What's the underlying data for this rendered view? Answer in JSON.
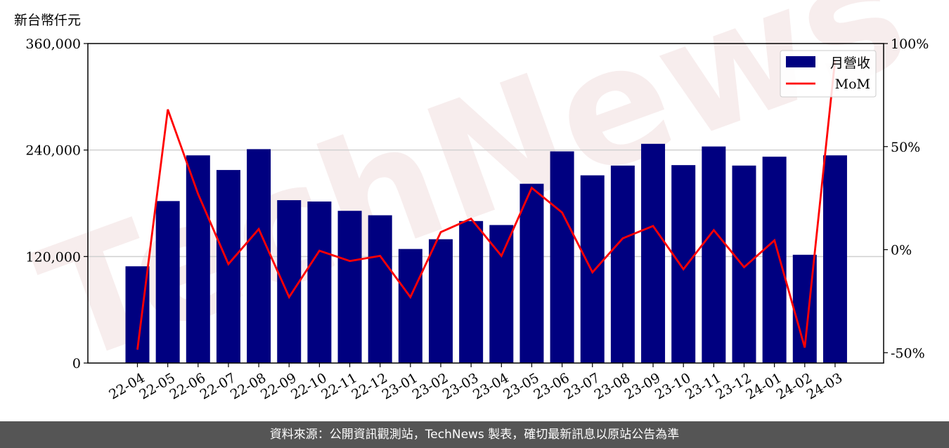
{
  "chart_data": {
    "type": "bar",
    "unit_label": "新台幣仟元",
    "categories": [
      "22-04",
      "22-05",
      "22-06",
      "22-07",
      "22-08",
      "22-09",
      "22-10",
      "22-11",
      "22-12",
      "23-01",
      "23-02",
      "23-03",
      "23-04",
      "23-05",
      "23-06",
      "23-07",
      "23-08",
      "23-09",
      "23-10",
      "23-11",
      "23-12",
      "24-01",
      "24-02",
      "24-03"
    ],
    "series": [
      {
        "name": "月營收",
        "axis": "left",
        "type": "bar",
        "color": "#000080",
        "values": [
          109000,
          182500,
          234000,
          217500,
          241000,
          183500,
          182000,
          171500,
          166500,
          128500,
          139500,
          160000,
          155500,
          202000,
          238500,
          211500,
          222500,
          247000,
          223000,
          244000,
          222500,
          232500,
          122000,
          234000
        ]
      },
      {
        "name": "MoM",
        "axis": "right",
        "type": "line",
        "color": "#ff0000",
        "values": [
          -48.5,
          68,
          27,
          -7,
          10,
          -23,
          -0.5,
          -5.5,
          -3,
          -23,
          8.5,
          15,
          -3,
          30,
          18,
          -11,
          5.5,
          11.5,
          -9.5,
          9.5,
          -8.5,
          4.5,
          -47.5,
          92
        ]
      }
    ],
    "y_left": {
      "ticks": [
        "0",
        "120,000",
        "240,000",
        "360,000"
      ],
      "tick_values": [
        0,
        120000,
        240000,
        360000
      ],
      "ylim": [
        0,
        360000
      ]
    },
    "y_right": {
      "ticks": [
        "-50%",
        "0%",
        "50%",
        "100%"
      ],
      "tick_values": [
        -50,
        0,
        50,
        100
      ],
      "ylim": [
        -55,
        100
      ]
    },
    "grid": "horizontal",
    "legend_position": "top-right",
    "watermark": "TechNews"
  },
  "footer": {
    "text": "資料來源：公開資訊觀測站，TechNews 製表，確切最新訊息以原站公告為準"
  }
}
